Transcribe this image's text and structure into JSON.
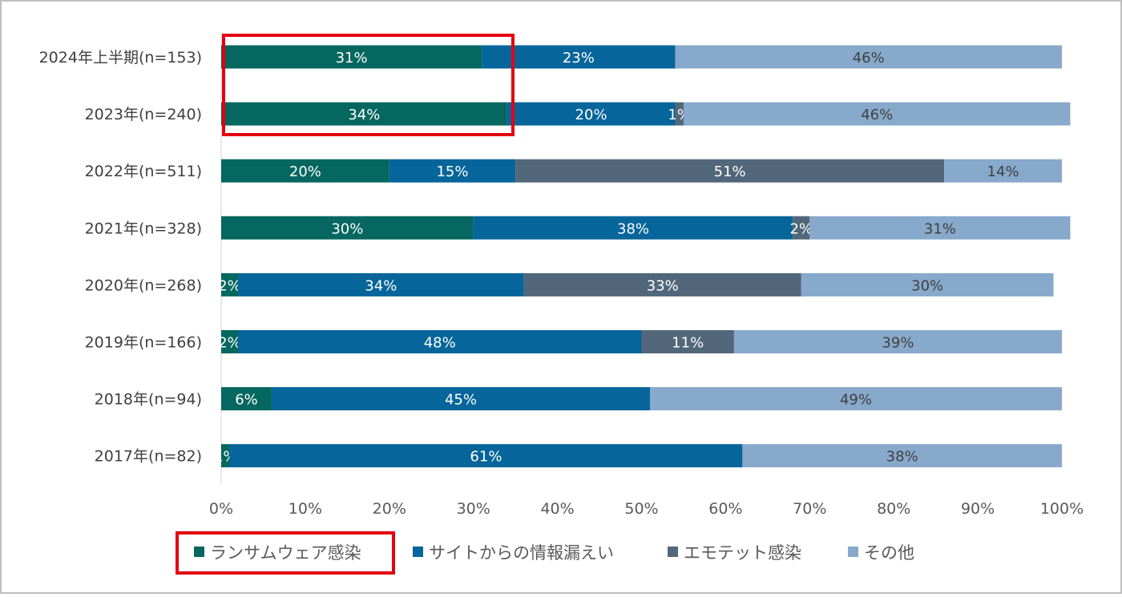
{
  "chart_data": {
    "type": "bar",
    "orientation": "horizontal",
    "stacked": true,
    "percent": true,
    "title": "",
    "xlabel": "",
    "ylabel": "",
    "xlim": [
      0,
      100
    ],
    "x_ticks": [
      "0%",
      "10%",
      "20%",
      "30%",
      "40%",
      "50%",
      "60%",
      "70%",
      "80%",
      "90%",
      "100%"
    ],
    "categories": [
      "2024年上半期(n=153)",
      "2023年(n=240)",
      "2022年(n=511)",
      "2021年(n=328)",
      "2020年(n=268)",
      "2019年(n=166)",
      "2018年(n=94)",
      "2017年(n=82)"
    ],
    "series": [
      {
        "name": "ランサムウェア感染",
        "color": "#05675f",
        "values": [
          31,
          34,
          20,
          30,
          2,
          2,
          6,
          1
        ],
        "labels": [
          "31%",
          "34%",
          "20%",
          "30%",
          "2%",
          "2%",
          "6%",
          "1%"
        ]
      },
      {
        "name": "サイトからの情報漏えい",
        "color": "#06659a",
        "values": [
          23,
          20,
          15,
          38,
          34,
          48,
          45,
          61
        ],
        "labels": [
          "23%",
          "20%",
          "15%",
          "38%",
          "34%",
          "48%",
          "45%",
          "61%"
        ]
      },
      {
        "name": "エモテット感染",
        "color": "#52677a",
        "values": [
          0,
          1,
          51,
          2,
          33,
          11,
          0,
          0
        ],
        "labels": [
          "",
          "1%",
          "51%",
          "2%",
          "33%",
          "11%",
          "",
          ""
        ]
      },
      {
        "name": "その他",
        "color": "#87a9cb",
        "values": [
          46,
          46,
          14,
          31,
          30,
          39,
          49,
          38
        ],
        "labels": [
          "46%",
          "46%",
          "14%",
          "31%",
          "30%",
          "39%",
          "49%",
          "38%"
        ]
      }
    ],
    "grid": false,
    "legend_position": "bottom",
    "highlights": [
      {
        "target": "ランサムウェア感染 (2024年上半期, 2023年)",
        "color": "#e3000f"
      },
      {
        "target": "legend: ランサムウェア感染",
        "color": "#e3000f"
      }
    ]
  }
}
